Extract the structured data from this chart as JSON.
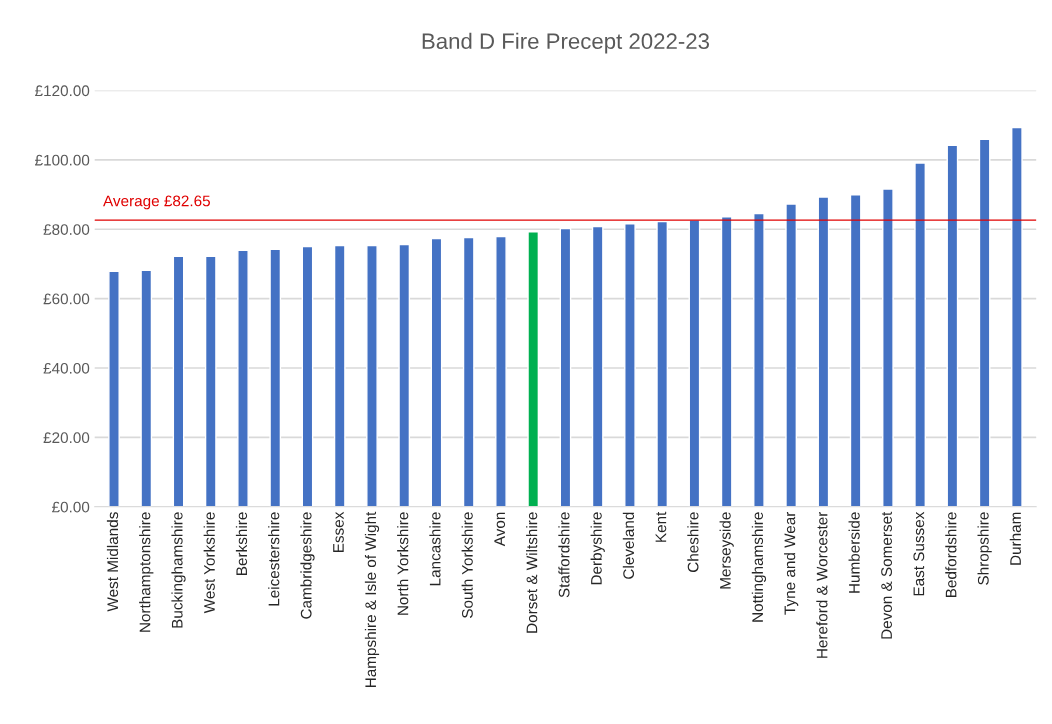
{
  "chart_data": {
    "type": "bar",
    "title": "Band D Fire Precept 2022-23",
    "categories": [
      "West Midlands",
      "Northamptonshire",
      "Buckinghamshire",
      "West Yorkshire",
      "Berkshire",
      "Leicestershire",
      "Cambridgeshire",
      "Essex",
      "Hampshire & Isle of Wight",
      "North Yorkshire",
      "Lancashire",
      "South Yorkshire",
      "Avon",
      "Dorset & Wiltshire",
      "Staffordshire",
      "Derbyshire",
      "Cleveland",
      "Kent",
      "Cheshire",
      "Merseyside",
      "Nottinghamshire",
      "Tyne and Wear",
      "Hereford & Worcester",
      "Humberside",
      "Devon & Somerset",
      "East Sussex",
      "Bedfordshire",
      "Shropshire",
      "Durham"
    ],
    "values": [
      67.9,
      68.2,
      72.2,
      72.2,
      73.9,
      74.2,
      75.0,
      75.3,
      75.3,
      75.6,
      77.3,
      77.6,
      77.9,
      79.3,
      80.2,
      80.8,
      81.6,
      82.2,
      82.7,
      83.6,
      84.5,
      87.3,
      89.3,
      89.9,
      91.6,
      99.1,
      104.2,
      105.9,
      109.3
    ],
    "colors": [
      "#4472c4",
      "#4472c4",
      "#4472c4",
      "#4472c4",
      "#4472c4",
      "#4472c4",
      "#4472c4",
      "#4472c4",
      "#4472c4",
      "#4472c4",
      "#4472c4",
      "#4472c4",
      "#4472c4",
      "#00b050",
      "#4472c4",
      "#4472c4",
      "#4472c4",
      "#4472c4",
      "#4472c4",
      "#4472c4",
      "#4472c4",
      "#4472c4",
      "#4472c4",
      "#4472c4",
      "#4472c4",
      "#4472c4",
      "#4472c4",
      "#4472c4",
      "#4472c4"
    ],
    "ylim": [
      0,
      120
    ],
    "yticks": [
      {
        "value": 0,
        "label": "£0.00"
      },
      {
        "value": 20,
        "label": "£20.00"
      },
      {
        "value": 40,
        "label": "£40.00"
      },
      {
        "value": 60,
        "label": "£60.00"
      },
      {
        "value": 80,
        "label": "£80.00"
      },
      {
        "value": 100,
        "label": "£100.00"
      },
      {
        "value": 120,
        "label": "£120.00"
      }
    ],
    "grid": "y",
    "ref_lines": [
      {
        "axis": "y",
        "value": 82.65,
        "label": "Average £82.65",
        "color": "#e00000"
      }
    ]
  }
}
